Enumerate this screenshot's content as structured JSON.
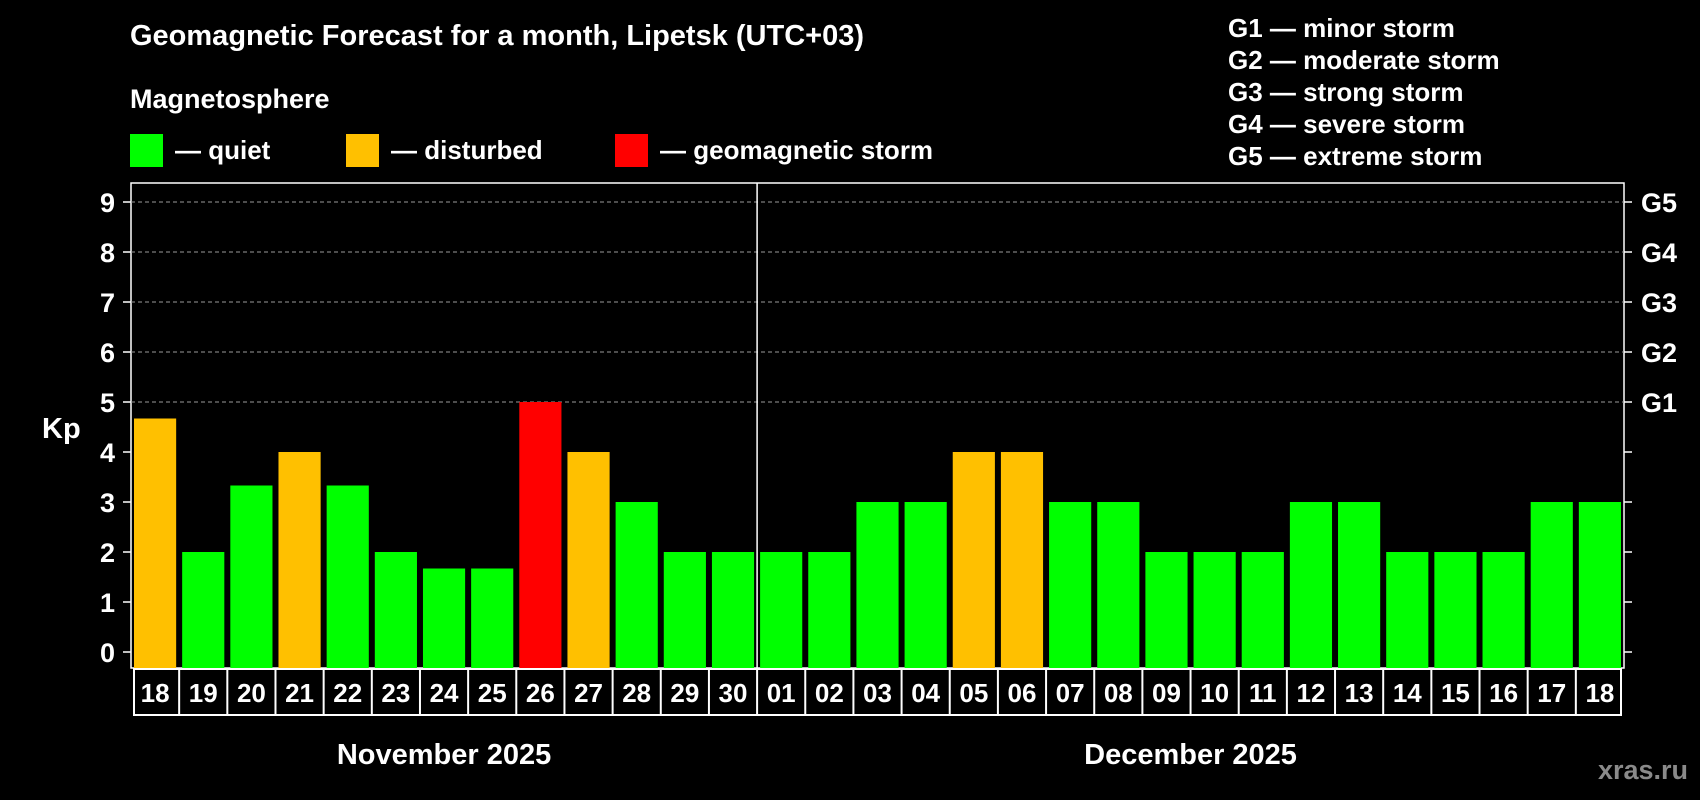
{
  "title": "Geomagnetic Forecast for a month, Lipetsk (UTC+03)",
  "magnetosphere": {
    "title": "Magnetosphere",
    "items": [
      {
        "color": "#00ff00",
        "label": "— quiet"
      },
      {
        "color": "#ffc000",
        "label": "— disturbed"
      },
      {
        "color": "#ff0000",
        "label": "— geomagnetic storm"
      }
    ]
  },
  "g_legend": [
    "G1 — minor storm",
    "G2 — moderate storm",
    "G3 — strong storm",
    "G4 — severe storm",
    "G5 — extreme storm"
  ],
  "watermark": "xras.ru",
  "chart_data": {
    "type": "bar",
    "ylabel": "Kp",
    "ylim": [
      0,
      9
    ],
    "yticks": [
      0,
      1,
      2,
      3,
      4,
      5,
      6,
      7,
      8,
      9
    ],
    "right_axis": [
      {
        "kp": 5,
        "label": "G1"
      },
      {
        "kp": 6,
        "label": "G2"
      },
      {
        "kp": 7,
        "label": "G3"
      },
      {
        "kp": 8,
        "label": "G4"
      },
      {
        "kp": 9,
        "label": "G5"
      }
    ],
    "grid": "dashed horizontal at Kp 5-9",
    "categories": [
      "18",
      "19",
      "20",
      "21",
      "22",
      "23",
      "24",
      "25",
      "26",
      "27",
      "28",
      "29",
      "30",
      "01",
      "02",
      "03",
      "04",
      "05",
      "06",
      "07",
      "08",
      "09",
      "10",
      "11",
      "12",
      "13",
      "14",
      "15",
      "16",
      "17",
      "18"
    ],
    "values": [
      4.67,
      2,
      3.33,
      4,
      3.33,
      2,
      1.67,
      1.67,
      5,
      4,
      3,
      2,
      2,
      2,
      2,
      3,
      3,
      4,
      4,
      3,
      3,
      2,
      2,
      2,
      3,
      3,
      2,
      2,
      2,
      3,
      3
    ],
    "status": [
      "disturbed",
      "quiet",
      "quiet",
      "disturbed",
      "quiet",
      "quiet",
      "quiet",
      "quiet",
      "storm",
      "disturbed",
      "quiet",
      "quiet",
      "quiet",
      "quiet",
      "quiet",
      "quiet",
      "quiet",
      "disturbed",
      "disturbed",
      "quiet",
      "quiet",
      "quiet",
      "quiet",
      "quiet",
      "quiet",
      "quiet",
      "quiet",
      "quiet",
      "quiet",
      "quiet",
      "quiet"
    ],
    "status_colors": {
      "quiet": "#00ff00",
      "disturbed": "#ffc000",
      "storm": "#ff0000"
    },
    "months": [
      {
        "label": "November 2025",
        "start": 0,
        "count": 13
      },
      {
        "label": "December 2025",
        "start": 13,
        "count": 18
      }
    ]
  }
}
